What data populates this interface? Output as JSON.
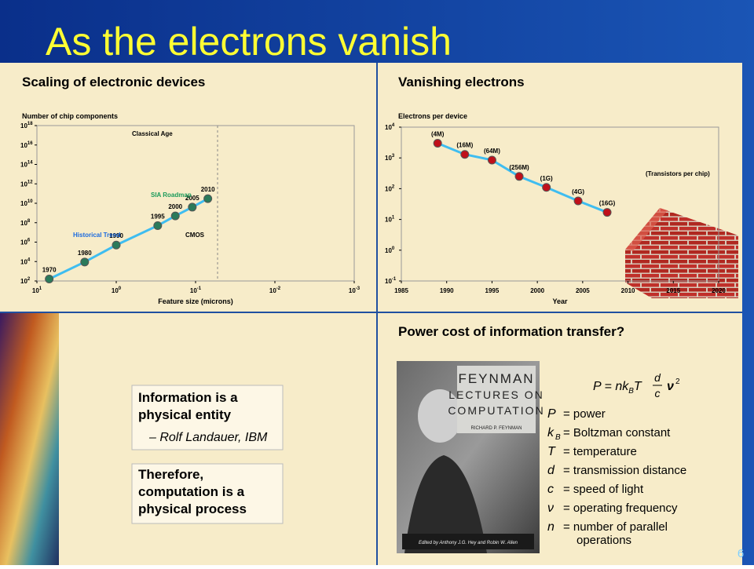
{
  "title": "As the electrons vanish",
  "page_number": "6",
  "charts": {
    "chart_data": [
      {
        "type": "scatter",
        "title": "Scaling of electronic devices",
        "y_label": "Number of chip components",
        "x_label": "Feature size (microns)",
        "x_log": true,
        "y_log": true,
        "xlim": [
          10,
          0.001
        ],
        "ylim": [
          100,
          1e+18
        ],
        "xticks": [
          {
            "value": 10,
            "label": "10^1"
          },
          {
            "value": 1,
            "label": "10^0"
          },
          {
            "value": 0.1,
            "label": "10^-1"
          },
          {
            "value": 0.01,
            "label": "10^-2"
          },
          {
            "value": 0.001,
            "label": "10^-3"
          }
        ],
        "yticks": [
          {
            "value": 100,
            "label": "10^2"
          },
          {
            "value": 10000,
            "label": "10^4"
          },
          {
            "value": 1000000,
            "label": "10^6"
          },
          {
            "value": 100000000,
            "label": "10^8"
          },
          {
            "value": 10000000000,
            "label": "10^10"
          },
          {
            "value": 1000000000000,
            "label": "10^12"
          },
          {
            "value": 100000000000000,
            "label": "10^14"
          },
          {
            "value": 1e+16,
            "label": "10^16"
          },
          {
            "value": 1e+18,
            "label": "10^18"
          }
        ],
        "x": [
          7,
          2.5,
          1,
          0.3,
          0.18,
          0.11,
          0.07
        ],
        "values": [
          160,
          9000,
          500000,
          50000000,
          500000000,
          4000000000,
          30000000000
        ],
        "point_labels": [
          "1970",
          "1980",
          "1990",
          "1995",
          "2000",
          "2005",
          "2010"
        ],
        "color": "#2a7a5a",
        "line_color": "#3fbdf0",
        "annotations": [
          "Classical Age",
          "SIA Roadmap",
          "Historical Trend",
          "CMOS"
        ]
      },
      {
        "type": "scatter",
        "title": "Vanishing electrons",
        "y_label": "Electrons per device",
        "x_label": "Year",
        "x_log": false,
        "y_log": true,
        "xlim": [
          1985,
          2020
        ],
        "ylim": [
          0.1,
          10000
        ],
        "xticks": [
          1985,
          1990,
          1995,
          2000,
          2005,
          2010,
          2015,
          2020
        ],
        "yticks": [
          {
            "value": 0.1,
            "label": "10^-1"
          },
          {
            "value": 1,
            "label": "10^0"
          },
          {
            "value": 10,
            "label": "10^1"
          },
          {
            "value": 100,
            "label": "10^2"
          },
          {
            "value": 1000,
            "label": "10^3"
          },
          {
            "value": 10000,
            "label": "10^4"
          }
        ],
        "x": [
          1989,
          1992,
          1995,
          1998,
          2001,
          2004.5,
          2007.7
        ],
        "values": [
          3000,
          1300,
          850,
          250,
          110,
          40,
          17
        ],
        "point_labels": [
          "(4M)",
          "(16M)",
          "(64M)",
          "(256M)",
          "(1G)",
          "(4G)",
          "(16G)"
        ],
        "color": "#c0101a",
        "line_color": "#3fbdf0",
        "annotations": [
          "(Transistors per chip)"
        ]
      }
    ]
  },
  "quotes": [
    {
      "lines": [
        "Information is a",
        "physical entity"
      ],
      "attribution": "– Rolf Landauer, IBM"
    },
    {
      "lines": [
        "Therefore,",
        "computation is a",
        "physical process"
      ]
    }
  ],
  "power": {
    "title": "Power cost of information transfer?",
    "formula": {
      "lhs": "P = nk",
      "sub": "B",
      "t": "T",
      "num": "d",
      "den": "c",
      "nu": "ν",
      "exp": "2"
    },
    "definitions": [
      {
        "symbol": "P",
        "lines": [
          "= power"
        ]
      },
      {
        "symbol": "k",
        "sub": "B",
        "lines": [
          "= Boltzman constant"
        ]
      },
      {
        "symbol": "T",
        "lines": [
          "= temperature"
        ]
      },
      {
        "symbol": "d",
        "lines": [
          "= transmission distance"
        ]
      },
      {
        "symbol": "c",
        "lines": [
          "= speed of light"
        ]
      },
      {
        "symbol": "ν",
        "lines": [
          "= operating frequency"
        ]
      },
      {
        "symbol": "n",
        "lines": [
          "= number of parallel",
          "operations"
        ]
      }
    ],
    "book": {
      "title_lines": [
        "FEYNMAN",
        "LECTURES ON",
        "COMPUTATION"
      ],
      "author": "RICHARD P. FEYNMAN",
      "editors": "Edited by Anthony J.G. Hey and Robin W. Allen"
    }
  }
}
